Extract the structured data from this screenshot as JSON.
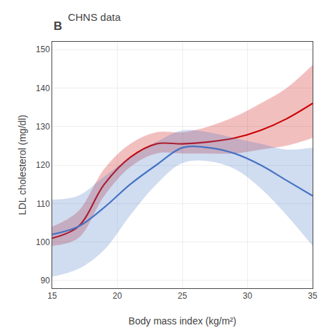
{
  "chart_data": {
    "type": "line",
    "title": "CHNS data",
    "annotations": [
      {
        "text": "B"
      }
    ],
    "x_label": "Body mass index (kg/m²)",
    "y_label": "LDL cholesterol (mg/dl)",
    "x": [
      15,
      17,
      19,
      21,
      23,
      25,
      27,
      29,
      31,
      33,
      35
    ],
    "series": [
      {
        "color": "#cc0000",
        "values": [
          101,
          104,
          115,
          122,
          125.5,
          125.5,
          126,
          127,
          129,
          132,
          136
        ],
        "low": [
          99,
          101,
          112,
          119.5,
          123,
          123,
          123,
          123,
          124,
          125,
          127
        ],
        "high": [
          104,
          108,
          119,
          125.5,
          128.5,
          128.5,
          130,
          132.5,
          136,
          140,
          146
        ]
      },
      {
        "color": "#4472c4",
        "values": [
          102,
          104,
          109,
          115,
          120,
          124.5,
          124.5,
          123,
          120,
          116,
          112
        ],
        "low": [
          91,
          93,
          98,
          107,
          115,
          120.5,
          121,
          119,
          114,
          107,
          99
        ],
        "high": [
          111,
          112,
          117,
          122,
          126,
          129,
          128.5,
          127,
          125.5,
          124,
          124.5
        ]
      }
    ],
    "xlim": [
      15,
      35
    ],
    "ylim": [
      88,
      152
    ],
    "xticks": [
      15,
      20,
      25,
      30,
      35
    ],
    "yticks": [
      90,
      100,
      110,
      120,
      130,
      140,
      150
    ],
    "grid": true
  }
}
